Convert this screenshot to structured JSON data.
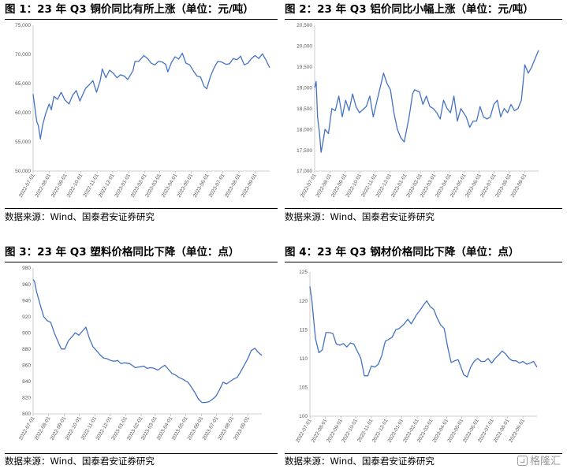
{
  "chart_data": [
    {
      "type": "line",
      "title": "图 1：23 年 Q3 铜价同比有所上涨（单位：元/吨）",
      "source": "数据来源：Wind、国泰君安证券研究",
      "ylim": [
        50000,
        75000
      ],
      "yticks": [
        "50,000",
        "55,000",
        "60,000",
        "65,000",
        "70,000",
        "75,000"
      ],
      "ytick_values": [
        50000,
        55000,
        60000,
        65000,
        70000,
        75000
      ],
      "x_range": [
        "2022-07-01",
        "2023-09-29"
      ],
      "xticks": [
        "2022-07-01",
        "2022-08-01",
        "2022-09-01",
        "2022-10-01",
        "2022-11-01",
        "2022-12-01",
        "2023-01-01",
        "2023-02-01",
        "2023-03-01",
        "2023-04-01",
        "2023-05-01",
        "2023-06-01",
        "2023-07-01",
        "2023-08-01",
        "2023-09-01"
      ],
      "color": "#4472C4",
      "series": [
        {
          "x": [
            "2022-07-01",
            "2022-07-05",
            "2022-07-08",
            "2022-07-11",
            "2022-07-15",
            "2022-07-19",
            "2022-07-25",
            "2022-08-01",
            "2022-08-05",
            "2022-08-10",
            "2022-08-17",
            "2022-08-24",
            "2022-08-31",
            "2022-09-08",
            "2022-09-15",
            "2022-09-22",
            "2022-09-29",
            "2022-10-10",
            "2022-10-17",
            "2022-10-24",
            "2022-10-31",
            "2022-11-07",
            "2022-11-11",
            "2022-11-18",
            "2022-11-25",
            "2022-12-02",
            "2022-12-09",
            "2022-12-16",
            "2022-12-23",
            "2022-12-30",
            "2023-01-09",
            "2023-01-13",
            "2023-01-20",
            "2023-01-30",
            "2023-02-06",
            "2023-02-13",
            "2023-02-20",
            "2023-02-27",
            "2023-03-06",
            "2023-03-13",
            "2023-03-17",
            "2023-03-24",
            "2023-03-31",
            "2023-04-07",
            "2023-04-14",
            "2023-04-21",
            "2023-04-28",
            "2023-05-05",
            "2023-05-12",
            "2023-05-19",
            "2023-05-26",
            "2023-05-31",
            "2023-06-07",
            "2023-06-14",
            "2023-06-21",
            "2023-06-28",
            "2023-07-07",
            "2023-07-14",
            "2023-07-21",
            "2023-07-28",
            "2023-08-04",
            "2023-08-11",
            "2023-08-18",
            "2023-08-25",
            "2023-09-01",
            "2023-09-08",
            "2023-09-15",
            "2023-09-22",
            "2023-09-29"
          ],
          "values": [
            63200,
            60500,
            58500,
            57800,
            55500,
            57800,
            59800,
            61500,
            60500,
            62800,
            62300,
            63500,
            62200,
            61500,
            63000,
            63800,
            62000,
            64200,
            64800,
            65500,
            63500,
            65500,
            67500,
            66000,
            67300,
            66800,
            66000,
            66500,
            66300,
            65700,
            67200,
            68800,
            68800,
            69800,
            69300,
            68500,
            68200,
            68800,
            68700,
            68300,
            67000,
            68600,
            69600,
            69200,
            70200,
            68500,
            68200,
            67200,
            66300,
            66100,
            64500,
            64100,
            66200,
            67700,
            68800,
            68700,
            68300,
            68400,
            69300,
            69100,
            69700,
            68200,
            68500,
            69300,
            69800,
            69300,
            70100,
            69000,
            67700
          ]
        }
      ]
    },
    {
      "type": "line",
      "title": "图 2：23 年 Q3 铝价同比小幅上涨（单位：元/吨）",
      "source": "数据来源：Wind、国泰君安证券研究",
      "ylim": [
        17000,
        20500
      ],
      "yticks": [
        "17,000",
        "17,500",
        "18,000",
        "18,500",
        "19,000",
        "19,500",
        "20,000",
        "20,500"
      ],
      "ytick_values": [
        17000,
        17500,
        18000,
        18500,
        19000,
        19500,
        20000,
        20500
      ],
      "x_range": [
        "2022-07-01",
        "2023-09-29"
      ],
      "xticks": [
        "2022-07-01",
        "2022-08-01",
        "2022-09-01",
        "2022-10-01",
        "2022-11-01",
        "2022-12-01",
        "2023-01-01",
        "2023-02-01",
        "2023-03-01",
        "2023-04-01",
        "2023-05-01",
        "2023-06-01",
        "2023-07-01",
        "2023-08-01",
        "2023-09-01"
      ],
      "color": "#4472C4",
      "series": [
        {
          "x": [
            "2022-07-01",
            "2022-07-04",
            "2022-07-07",
            "2022-07-11",
            "2022-07-14",
            "2022-07-18",
            "2022-07-22",
            "2022-07-29",
            "2022-08-05",
            "2022-08-12",
            "2022-08-19",
            "2022-08-26",
            "2022-09-02",
            "2022-09-09",
            "2022-09-16",
            "2022-09-23",
            "2022-09-30",
            "2022-10-14",
            "2022-10-21",
            "2022-10-28",
            "2022-11-04",
            "2022-11-11",
            "2022-11-18",
            "2022-11-25",
            "2022-12-02",
            "2022-12-09",
            "2022-12-16",
            "2022-12-23",
            "2022-12-30",
            "2023-01-09",
            "2023-01-16",
            "2023-01-20",
            "2023-01-30",
            "2023-02-06",
            "2023-02-13",
            "2023-02-20",
            "2023-02-27",
            "2023-03-06",
            "2023-03-13",
            "2023-03-20",
            "2023-03-27",
            "2023-04-03",
            "2023-04-10",
            "2023-04-17",
            "2023-04-24",
            "2023-05-05",
            "2023-05-12",
            "2023-05-19",
            "2023-05-26",
            "2023-06-02",
            "2023-06-09",
            "2023-06-16",
            "2023-06-23",
            "2023-06-30",
            "2023-07-07",
            "2023-07-14",
            "2023-07-21",
            "2023-07-28",
            "2023-08-04",
            "2023-08-11",
            "2023-08-18",
            "2023-08-25",
            "2023-09-01",
            "2023-09-08",
            "2023-09-15",
            "2023-09-22",
            "2023-09-29"
          ],
          "values": [
            19000,
            19150,
            18300,
            17900,
            17450,
            17700,
            18000,
            17900,
            18500,
            18450,
            18800,
            18300,
            18700,
            18450,
            18850,
            18550,
            18400,
            18550,
            18800,
            18300,
            18650,
            19000,
            19350,
            19100,
            18950,
            18400,
            18000,
            17800,
            17700,
            18300,
            18850,
            18950,
            18900,
            18600,
            18800,
            18550,
            18500,
            18400,
            18250,
            18700,
            18500,
            18400,
            18800,
            18200,
            18500,
            18300,
            18050,
            18200,
            18200,
            18550,
            18300,
            18250,
            18300,
            18600,
            18700,
            18300,
            18500,
            18400,
            18600,
            18450,
            18500,
            18700,
            19550,
            19350,
            19500,
            19700,
            19900
          ]
        }
      ]
    },
    {
      "type": "line",
      "title": "图 3：23 年 Q3 塑料价格同比下降（单位：点）",
      "source": "数据来源：Wind、国泰君安证券研究",
      "ylim": [
        800,
        980
      ],
      "yticks": [
        "800",
        "820",
        "840",
        "860",
        "880",
        "900",
        "920",
        "940",
        "960",
        "980"
      ],
      "ytick_values": [
        800,
        820,
        840,
        860,
        880,
        900,
        920,
        940,
        960,
        980
      ],
      "x_range": [
        "2022-07-01",
        "2023-09-29"
      ],
      "xticks": [
        "2022-07-01",
        "2022-08-01",
        "2022-09-01",
        "2022-10-01",
        "2022-11-01",
        "2022-12-01",
        "2023-01-01",
        "2023-02-01",
        "2023-03-01",
        "2023-04-01",
        "2023-05-01",
        "2023-06-01",
        "2023-07-01",
        "2023-08-01",
        "2023-09-01"
      ],
      "color": "#4472C4",
      "series": [
        {
          "x": [
            "2022-07-01",
            "2022-07-04",
            "2022-07-08",
            "2022-07-15",
            "2022-07-22",
            "2022-07-29",
            "2022-08-05",
            "2022-08-12",
            "2022-08-19",
            "2022-08-26",
            "2022-09-02",
            "2022-09-09",
            "2022-09-16",
            "2022-09-23",
            "2022-09-30",
            "2022-10-14",
            "2022-10-21",
            "2022-10-28",
            "2022-11-04",
            "2022-11-11",
            "2022-11-18",
            "2022-11-25",
            "2022-12-02",
            "2022-12-09",
            "2022-12-16",
            "2022-12-23",
            "2022-12-30",
            "2023-01-09",
            "2023-01-16",
            "2023-01-20",
            "2023-01-30",
            "2023-02-06",
            "2023-02-13",
            "2023-02-20",
            "2023-02-27",
            "2023-03-06",
            "2023-03-13",
            "2023-03-20",
            "2023-03-27",
            "2023-04-03",
            "2023-04-10",
            "2023-04-17",
            "2023-04-24",
            "2023-05-05",
            "2023-05-12",
            "2023-05-19",
            "2023-05-26",
            "2023-06-02",
            "2023-06-09",
            "2023-06-16",
            "2023-06-23",
            "2023-06-30",
            "2023-07-07",
            "2023-07-14",
            "2023-07-21",
            "2023-07-28",
            "2023-08-04",
            "2023-08-11",
            "2023-08-18",
            "2023-08-25",
            "2023-09-01",
            "2023-09-08",
            "2023-09-15",
            "2023-09-22",
            "2023-09-29"
          ],
          "values": [
            966,
            963,
            950,
            935,
            920,
            915,
            913,
            900,
            890,
            880,
            880,
            890,
            895,
            900,
            897,
            907,
            893,
            883,
            878,
            873,
            869,
            868,
            866,
            865,
            866,
            862,
            863,
            862,
            859,
            857,
            858,
            859,
            856,
            857,
            856,
            854,
            857,
            860,
            855,
            850,
            848,
            845,
            843,
            839,
            833,
            826,
            818,
            814,
            814,
            815,
            818,
            822,
            830,
            839,
            837,
            840,
            843,
            845,
            852,
            860,
            868,
            878,
            881,
            876,
            872
          ]
        }
      ]
    },
    {
      "type": "line",
      "title": "图 4：23 年 Q3 钢材价格同比下降（单位：点）",
      "source": "数据来源：Wind、国泰君安证券研究",
      "ylim": [
        100,
        125
      ],
      "yticks": [
        "100",
        "105",
        "110",
        "115",
        "120",
        "125"
      ],
      "ytick_values": [
        100,
        105,
        110,
        115,
        120,
        125
      ],
      "x_range": [
        "2022-07-01",
        "2023-09-29"
      ],
      "xticks": [
        "2022-07-01",
        "2022-08-01",
        "2022-09-01",
        "2022-10-01",
        "2022-11-01",
        "2022-12-01",
        "2023-01-01",
        "2023-02-01",
        "2023-03-01",
        "2023-04-01",
        "2023-05-01",
        "2023-06-01",
        "2023-07-01",
        "2023-08-01",
        "2023-09-01"
      ],
      "color": "#4472C4",
      "series": [
        {
          "x": [
            "2022-07-01",
            "2022-07-05",
            "2022-07-12",
            "2022-07-19",
            "2022-07-26",
            "2022-08-02",
            "2022-08-09",
            "2022-08-16",
            "2022-08-23",
            "2022-08-30",
            "2022-09-06",
            "2022-09-13",
            "2022-09-20",
            "2022-09-27",
            "2022-10-11",
            "2022-10-18",
            "2022-10-25",
            "2022-11-01",
            "2022-11-08",
            "2022-11-15",
            "2022-11-22",
            "2022-11-29",
            "2022-12-06",
            "2022-12-13",
            "2022-12-20",
            "2022-12-27",
            "2023-01-06",
            "2023-01-13",
            "2023-01-20",
            "2023-01-30",
            "2023-02-06",
            "2023-02-13",
            "2023-02-20",
            "2023-02-27",
            "2023-03-06",
            "2023-03-13",
            "2023-03-20",
            "2023-03-27",
            "2023-04-03",
            "2023-04-10",
            "2023-04-17",
            "2023-04-24",
            "2023-05-05",
            "2023-05-12",
            "2023-05-19",
            "2023-05-26",
            "2023-06-02",
            "2023-06-09",
            "2023-06-16",
            "2023-06-23",
            "2023-06-30",
            "2023-07-07",
            "2023-07-14",
            "2023-07-21",
            "2023-07-28",
            "2023-08-04",
            "2023-08-11",
            "2023-08-18",
            "2023-08-25",
            "2023-09-01",
            "2023-09-08",
            "2023-09-15",
            "2023-09-22",
            "2023-09-29"
          ],
          "values": [
            122.5,
            120,
            113.5,
            111,
            111.5,
            114.5,
            114.5,
            114.3,
            112.5,
            112.3,
            112.6,
            112,
            112.7,
            112.5,
            110,
            107,
            107,
            108.7,
            108.5,
            109,
            110.5,
            113,
            113.3,
            113.7,
            115,
            115.2,
            116,
            116.8,
            116,
            117.5,
            118.3,
            119.2,
            120,
            119,
            118.5,
            117,
            115.8,
            115.2,
            112,
            109.3,
            109.6,
            109.8,
            107.2,
            106.8,
            108.5,
            109.5,
            110,
            109.5,
            109.5,
            110,
            109.2,
            110,
            110.6,
            111.3,
            110.8,
            110,
            109.6,
            109.6,
            109.2,
            109.5,
            109,
            109.2,
            109.5,
            108.5
          ]
        }
      ]
    }
  ],
  "watermark": "格隆汇"
}
